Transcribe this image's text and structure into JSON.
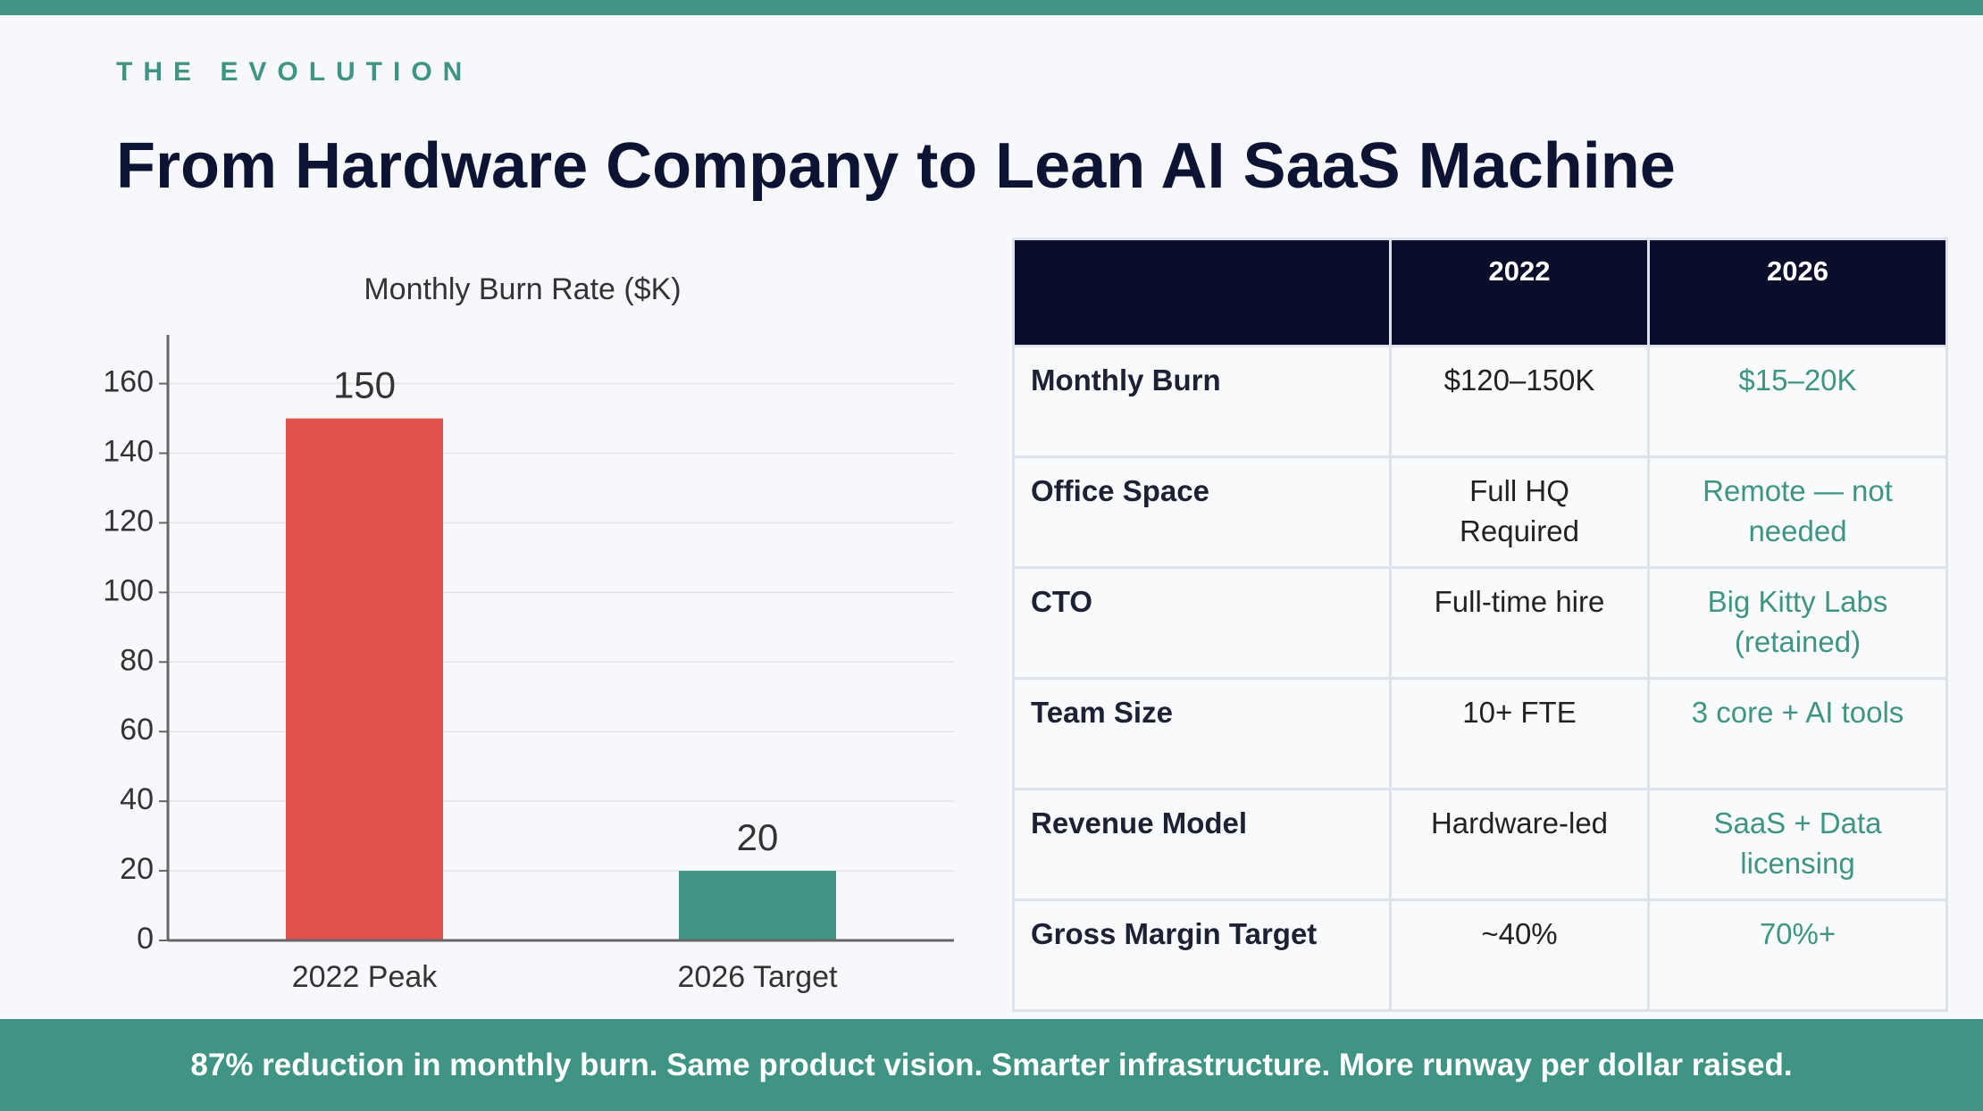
{
  "eyebrow": "THE EVOLUTION",
  "title": "From Hardware Company to Lean AI SaaS Machine",
  "chart_data": {
    "type": "bar",
    "title": "Monthly Burn Rate ($K)",
    "categories": [
      "2022 Peak",
      "2026 Target"
    ],
    "values": [
      150,
      20
    ],
    "colors": [
      "#e0534d",
      "#3f9484"
    ],
    "ylim": [
      0,
      174
    ],
    "yticks": [
      0,
      20,
      40,
      60,
      80,
      100,
      120,
      140,
      160
    ],
    "grid": true
  },
  "table": {
    "columns": [
      "2022",
      "2026"
    ],
    "rows": [
      [
        "Monthly Burn",
        "$120–150K",
        "$15–20K"
      ],
      [
        "Office Space",
        "Full HQ Required",
        "Remote — not needed"
      ],
      [
        "CTO",
        "Full-time hire",
        "Big Kitty Labs (retained)"
      ],
      [
        "Team Size",
        "10+ FTE",
        "3 core + AI tools"
      ],
      [
        "Revenue Model",
        "Hardware-led",
        "SaaS + Data licensing"
      ],
      [
        "Gross Margin Target",
        "~40%",
        "70%+"
      ]
    ]
  },
  "footer": "87% reduction in monthly burn. Same product vision. Smarter infrastructure. More runway per dollar raised."
}
